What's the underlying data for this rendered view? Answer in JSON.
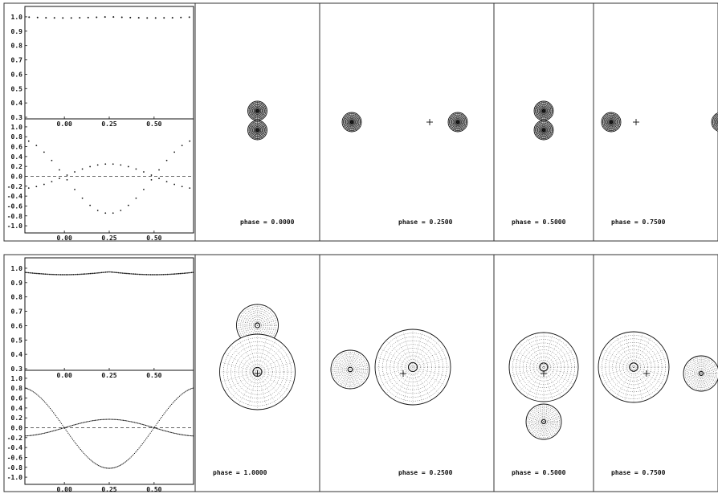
{
  "rows": [
    {
      "panels": [
        {
          "phase_label": "phase = 0.0000",
          "layout": "eclipse",
          "mass_ratio": 1.0
        },
        {
          "phase_label": "phase = 0.2500",
          "layout": "apart",
          "primary_side": "left",
          "mass_ratio": 1.0
        },
        {
          "phase_label": "phase = 0.5000",
          "layout": "eclipse",
          "mass_ratio": 1.0
        },
        {
          "phase_label": "phase = 0.7500",
          "layout": "apart",
          "primary_side": "right",
          "mass_ratio": 1.0
        }
      ],
      "light_curve": {
        "y_ticks": [
          "1.0",
          "0.9",
          "0.8",
          "0.7",
          "0.6",
          "0.5",
          "0.4",
          "0.3"
        ],
        "x_ticks": [
          "0.00",
          "0.25",
          "0.50"
        ],
        "ylim": [
          0.3,
          1.05
        ],
        "xlim": [
          -0.22,
          0.72
        ],
        "flux_mean": 1.0,
        "flux_amplitude": 0.008
      },
      "rv_curve": {
        "y_ticks": [
          "1.0",
          "0.8",
          "0.6",
          "0.4",
          "0.2",
          "0.0",
          "-0.2",
          "-0.4",
          "-0.6",
          "-0.8",
          "-1.0"
        ],
        "x_ticks": [
          "0.00",
          "0.25",
          "0.50"
        ],
        "ylim": [
          -1.08,
          1.08
        ],
        "xlim": [
          -0.22,
          0.72
        ],
        "amplitude_primary": 0.25,
        "amplitude_secondary": 0.75
      }
    },
    {
      "panels": [
        {
          "phase_label": "phase = 1.0000",
          "layout": "eclipse",
          "mass_ratio": 0.55
        },
        {
          "phase_label": "phase = 0.2500",
          "layout": "apart",
          "primary_side": "right",
          "mass_ratio": 0.55
        },
        {
          "phase_label": "phase = 0.5000",
          "layout": "eclipse",
          "mass_ratio": 0.55
        },
        {
          "phase_label": "phase = 0.7500",
          "layout": "apart",
          "primary_side": "left",
          "mass_ratio": 0.55
        }
      ],
      "light_curve": {
        "y_ticks": [
          "1.0",
          "0.9",
          "0.8",
          "0.7",
          "0.6",
          "0.5",
          "0.4",
          "0.3"
        ],
        "x_ticks": [
          "0.00",
          "0.25",
          "0.50"
        ],
        "ylim": [
          0.3,
          1.05
        ],
        "xlim": [
          -0.22,
          0.72
        ],
        "flux_mean": 0.975,
        "flux_amplitude": 0.02
      },
      "rv_curve": {
        "y_ticks": [
          "1.0",
          "0.8",
          "0.6",
          "0.4",
          "0.2",
          "0.0",
          "-0.2",
          "-0.4",
          "-0.6",
          "-0.8",
          "-1.0"
        ],
        "x_ticks": [
          "0.00",
          "0.25",
          "0.50"
        ],
        "ylim": [
          -1.08,
          1.08
        ],
        "xlim": [
          -0.22,
          0.72
        ],
        "amplitude_primary": 0.17,
        "amplitude_secondary": 0.82
      }
    }
  ]
}
